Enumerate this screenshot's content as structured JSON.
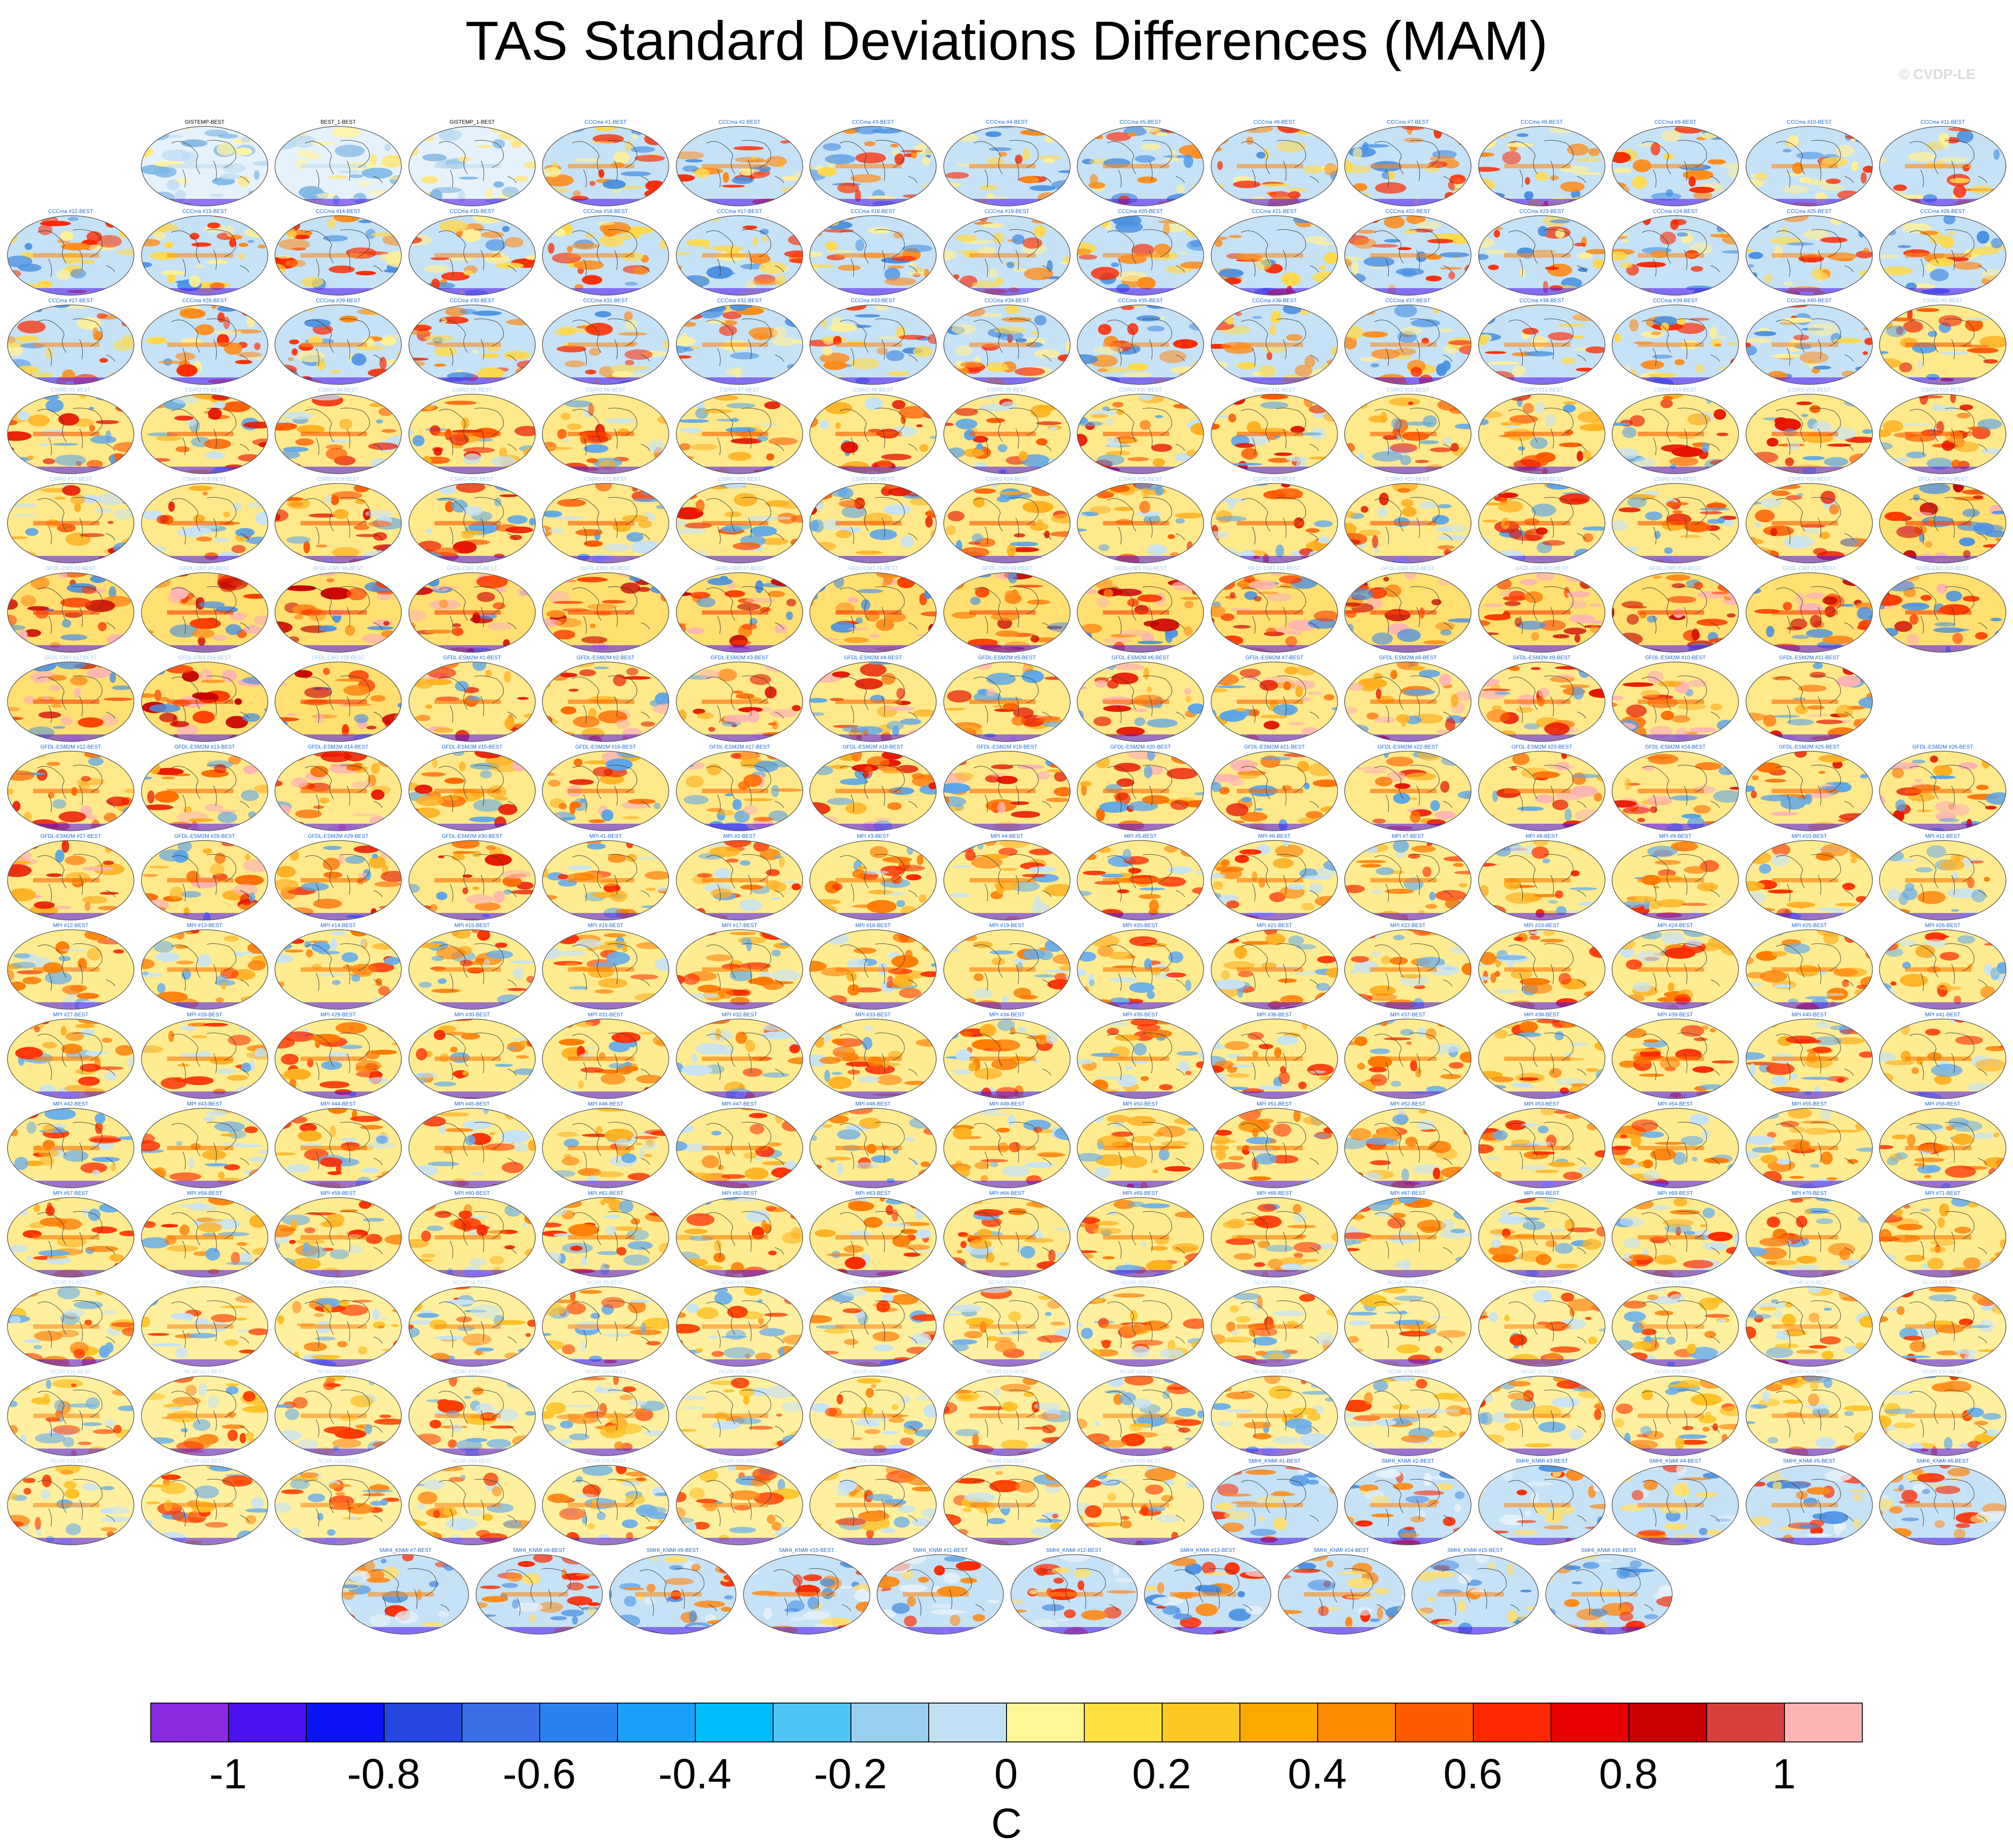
{
  "title": "TAS Standard Deviations Differences (MAM)",
  "watermark": "© CVDP-LE",
  "colorbar": {
    "units": "C",
    "labels": [
      "-1",
      "-0.8",
      "-0.6",
      "-0.4",
      "-0.2",
      "0",
      "0.2",
      "0.4",
      "0.6",
      "0.8",
      "1"
    ],
    "colors": [
      "#8a2be2",
      "#4b0ff0",
      "#0a14f5",
      "#2846e0",
      "#3c6ee6",
      "#2a82f0",
      "#1aa0f8",
      "#00bcf8",
      "#50c4f4",
      "#9ad0ee",
      "#c0e0f4",
      "#fff696",
      "#ffe040",
      "#ffc820",
      "#ffa800",
      "#ff8a00",
      "#ff5a00",
      "#ff2800",
      "#e80000",
      "#c80000",
      "#d84040",
      "#ffb4b4"
    ]
  },
  "panel_rows": [
    [
      "GISTEMP-BEST",
      "BEST_1-BEST",
      "GISTEMP_1-BEST",
      "CCCma #1-BEST",
      "CCCma #2-BEST",
      "CCCma #3-BEST",
      "CCCma #4-BEST",
      "CCCma #5-BEST",
      "CCCma #6-BEST",
      "CCCma #7-BEST",
      "CCCma #8-BEST",
      "CCCma #9-BEST",
      "CCCma #10-BEST",
      "CCCma #11-BEST"
    ],
    [
      "CCCma #12-BEST",
      "CCCma #13-BEST",
      "CCCma #14-BEST",
      "CCCma #15-BEST",
      "CCCma #16-BEST",
      "CCCma #17-BEST",
      "CCCma #18-BEST",
      "CCCma #19-BEST",
      "CCCma #20-BEST",
      "CCCma #21-BEST",
      "CCCma #22-BEST",
      "CCCma #23-BEST",
      "CCCma #24-BEST",
      "CCCma #25-BEST",
      "CCCma #26-BEST"
    ],
    [
      "CCCma #27-BEST",
      "CCCma #28-BEST",
      "CCCma #29-BEST",
      "CCCma #30-BEST",
      "CCCma #31-BEST",
      "CCCma #32-BEST",
      "CCCma #33-BEST",
      "CCCma #34-BEST",
      "CCCma #35-BEST",
      "CCCma #36-BEST",
      "CCCma #37-BEST",
      "CCCma #38-BEST",
      "CCCma #39-BEST",
      "CCCma #40-BEST",
      "CSIRO #1-BEST"
    ],
    [
      "CSIRO #2-BEST",
      "CSIRO #3-BEST",
      "CSIRO #4-BEST",
      "CSIRO #5-BEST",
      "CSIRO #6-BEST",
      "CSIRO #7-BEST",
      "CSIRO #8-BEST",
      "CSIRO #9-BEST",
      "CSIRO #10-BEST",
      "CSIRO #11-BEST",
      "CSIRO #12-BEST",
      "CSIRO #13-BEST",
      "CSIRO #14-BEST",
      "CSIRO #15-BEST",
      "CSIRO #16-BEST"
    ],
    [
      "CSIRO #17-BEST",
      "CSIRO #18-BEST",
      "CSIRO #19-BEST",
      "CSIRO #20-BEST",
      "CSIRO #21-BEST",
      "CSIRO #22-BEST",
      "CSIRO #23-BEST",
      "CSIRO #24-BEST",
      "CSIRO #25-BEST",
      "CSIRO #26-BEST",
      "CSIRO #27-BEST",
      "CSIRO #28-BEST",
      "CSIRO #29-BEST",
      "CSIRO #30-BEST",
      "GFDL-CM3 #1-BEST"
    ],
    [
      "GFDL-CM3 #2-BEST",
      "GFDL-CM3 #3-BEST",
      "GFDL-CM3 #4-BEST",
      "GFDL-CM3 #5-BEST",
      "GFDL-CM3 #6-BEST",
      "GFDL-CM3 #7-BEST",
      "GFDL-CM3 #8-BEST",
      "GFDL-CM3 #9-BEST",
      "GFDL-CM3 #10-BEST",
      "GFDL-CM3 #11-BEST",
      "GFDL-CM3 #12-BEST",
      "GFDL-CM3 #13-BEST",
      "GFDL-CM3 #14-BEST",
      "GFDL-CM3 #15-BEST",
      "GFDL-CM3 #16-BEST"
    ],
    [
      "GFDL-CM3 #17-BEST",
      "GFDL-CM3 #18-BEST",
      "GFDL-CM3 #20-BEST",
      "GFDL-ESM2M #1-BEST",
      "GFDL-ESM2M #2-BEST",
      "GFDL-ESM2M #3-BEST",
      "GFDL-ESM2M #4-BEST",
      "GFDL-ESM2M #5-BEST",
      "GFDL-ESM2M #6-BEST",
      "GFDL-ESM2M #7-BEST",
      "GFDL-ESM2M #8-BEST",
      "GFDL-ESM2M #9-BEST",
      "GFDL-ESM2M #10-BEST",
      "GFDL-ESM2M #11-BEST"
    ],
    [
      "GFDL-ESM2M #12-BEST",
      "GFDL-ESM2M #13-BEST",
      "GFDL-ESM2M #14-BEST",
      "GFDL-ESM2M #15-BEST",
      "GFDL-ESM2M #16-BEST",
      "GFDL-ESM2M #17-BEST",
      "GFDL-ESM2M #18-BEST",
      "GFDL-ESM2M #19-BEST",
      "GFDL-ESM2M #20-BEST",
      "GFDL-ESM2M #21-BEST",
      "GFDL-ESM2M #22-BEST",
      "GFDL-ESM2M #23-BEST",
      "GFDL-ESM2M #24-BEST",
      "GFDL-ESM2M #25-BEST",
      "GFDL-ESM2M #26-BEST"
    ],
    [
      "GFDL-ESM2M #27-BEST",
      "GFDL-ESM2M #28-BEST",
      "GFDL-ESM2M #29-BEST",
      "GFDL-ESM2M #30-BEST",
      "MPI #1-BEST",
      "MPI #2-BEST",
      "MPI #3-BEST",
      "MPI #4-BEST",
      "MPI #5-BEST",
      "MPI #6-BEST",
      "MPI #7-BEST",
      "MPI #8-BEST",
      "MPI #9-BEST",
      "MPI #10-BEST",
      "MPI #11-BEST"
    ],
    [
      "MPI #12-BEST",
      "MPI #13-BEST",
      "MPI #14-BEST",
      "MPI #15-BEST",
      "MPI #16-BEST",
      "MPI #17-BEST",
      "MPI #18-BEST",
      "MPI #19-BEST",
      "MPI #20-BEST",
      "MPI #21-BEST",
      "MPI #22-BEST",
      "MPI #23-BEST",
      "MPI #24-BEST",
      "MPI #25-BEST",
      "MPI #26-BEST"
    ],
    [
      "MPI #27-BEST",
      "MPI #28-BEST",
      "MPI #29-BEST",
      "MPI #30-BEST",
      "MPI #31-BEST",
      "MPI #32-BEST",
      "MPI #33-BEST",
      "MPI #34-BEST",
      "MPI #35-BEST",
      "MPI #36-BEST",
      "MPI #37-BEST",
      "MPI #38-BEST",
      "MPI #39-BEST",
      "MPI #40-BEST",
      "MPI #41-BEST"
    ],
    [
      "MPI #42-BEST",
      "MPI #43-BEST",
      "MPI #44-BEST",
      "MPI #45-BEST",
      "MPI #46-BEST",
      "MPI #47-BEST",
      "MPI #48-BEST",
      "MPI #49-BEST",
      "MPI #50-BEST",
      "MPI #51-BEST",
      "MPI #52-BEST",
      "MPI #53-BEST",
      "MPI #54-BEST",
      "MPI #55-BEST",
      "MPI #56-BEST"
    ],
    [
      "MPI #57-BEST",
      "MPI #58-BEST",
      "MPI #59-BEST",
      "MPI #60-BEST",
      "MPI #61-BEST",
      "MPI #62-BEST",
      "MPI #63-BEST",
      "MPI #64-BEST",
      "MPI #65-BEST",
      "MPI #66-BEST",
      "MPI #67-BEST",
      "MPI #68-BEST",
      "MPI #69-BEST",
      "MPI #70-BEST",
      "MPI #71-BEST"
    ],
    [
      "NCAR #1-BEST",
      "NCAR #2-BEST",
      "NCAR #3-BEST",
      "NCAR #4-BEST",
      "NCAR #5-BEST",
      "NCAR #6-BEST",
      "NCAR #7-BEST",
      "NCAR #8-BEST",
      "NCAR #9-BEST",
      "NCAR #10-BEST",
      "NCAR #11-BEST",
      "NCAR #12-BEST",
      "NCAR #13-BEST",
      "NCAR #14-BEST",
      "NCAR #15-BEST"
    ],
    [
      "NCAR #16-BEST",
      "NCAR #17-BEST",
      "NCAR #18-BEST",
      "NCAR #19-BEST",
      "NCAR #20-BEST",
      "NCAR #21-BEST",
      "NCAR #22-BEST",
      "NCAR #23-BEST",
      "NCAR #24-BEST",
      "NCAR #25-BEST",
      "NCAR #26-BEST",
      "NCAR #27-BEST",
      "NCAR #28-BEST",
      "NCAR #29-BEST",
      "NCAR #30-BEST"
    ],
    [
      "NCAR #31-BEST",
      "NCAR #32-BEST",
      "NCAR #33-BEST",
      "NCAR #34-BEST",
      "NCAR #35-BEST",
      "NCAR #36-BEST",
      "NCAR #37-BEST",
      "NCAR #38-BEST",
      "NCAR #39-BEST",
      "SMHI_KNMI #1-BEST",
      "SMHI_KNMI #2-BEST",
      "SMHI_KNMI #3-BEST",
      "SMHI_KNMI #4-BEST",
      "SMHI_KNMI #5-BEST",
      "SMHI_KNMI #6-BEST"
    ],
    [
      "SMHI_KNMI #7-BEST",
      "SMHI_KNMI #8-BEST",
      "SMHI_KNMI #9-BEST",
      "SMHI_KNMI #10-BEST",
      "SMHI_KNMI #11-BEST",
      "SMHI_KNMI #12-BEST",
      "SMHI_KNMI #13-BEST",
      "SMHI_KNMI #14-BEST",
      "SMHI_KNMI #15-BEST",
      "SMHI_KNMI #16-BEST"
    ]
  ],
  "panel_styles": {
    "obs": {
      "label_color": "#000000",
      "base": "#e6f2fb",
      "blobs": [
        "#fff5a0",
        "#bcdcf2",
        "#7fb8e6",
        "#ffe680"
      ]
    },
    "CCCma": {
      "label_color": "#1a66cc",
      "base": "#c6e2f6",
      "blobs": [
        "#ffd94a",
        "#ff8c1a",
        "#ff2a00",
        "#4a90e2",
        "#fff096"
      ]
    },
    "CSIRO": {
      "label_color": "#9cc8ec",
      "base": "#ffe98a",
      "blobs": [
        "#ffb020",
        "#ff5a00",
        "#e81400",
        "#5aa4ea",
        "#c6e2f6"
      ]
    },
    "GFDL-CM3": {
      "label_color": "#9cc8ec",
      "base": "#ffe070",
      "blobs": [
        "#ff8c1a",
        "#ff3c00",
        "#c80000",
        "#4a90e2",
        "#ffb4b4"
      ]
    },
    "GFDL-ESM2M": {
      "label_color": "#1a66cc",
      "base": "#ffe98a",
      "blobs": [
        "#ffb020",
        "#ff6a00",
        "#e81400",
        "#5aa4ea",
        "#ffb4b4"
      ]
    },
    "MPI": {
      "label_color": "#1a66cc",
      "base": "#ffec90",
      "blobs": [
        "#ffb020",
        "#ff7a00",
        "#ff2a00",
        "#6aaeea",
        "#c6e2f6"
      ]
    },
    "NCAR": {
      "label_color": "#bcdaf2",
      "base": "#fff0a0",
      "blobs": [
        "#ffc020",
        "#ff8c1a",
        "#ff3c00",
        "#6aaeea",
        "#c6e2f6"
      ]
    },
    "SMHI_KNMI": {
      "label_color": "#1a66cc",
      "base": "#c6e2f6",
      "blobs": [
        "#ffe070",
        "#ff8c1a",
        "#4a90e2",
        "#e6f2fb",
        "#ff2a00"
      ]
    }
  }
}
